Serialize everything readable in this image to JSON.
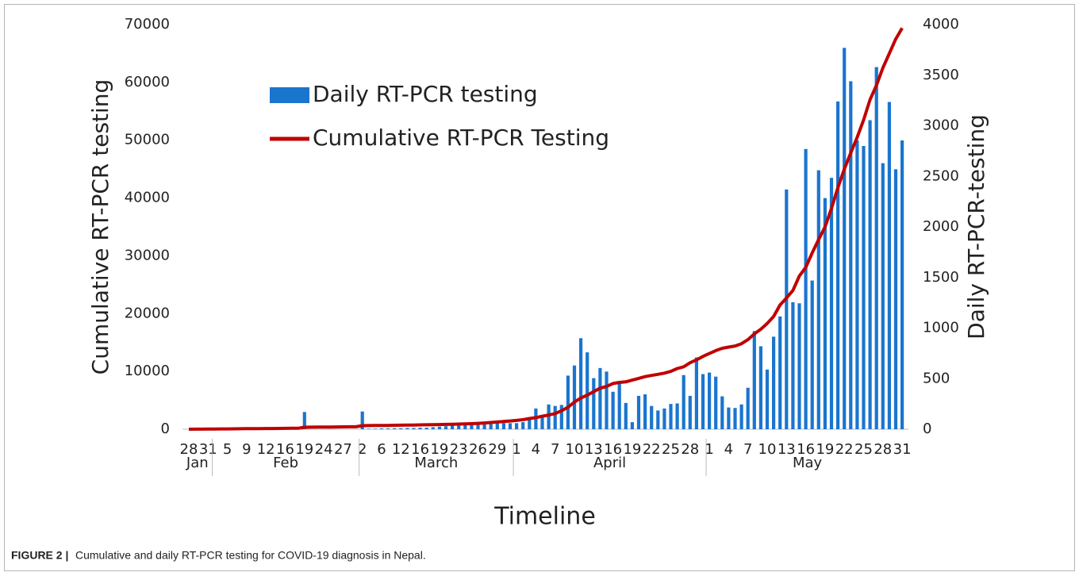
{
  "chart_data": {
    "type": "bar-line",
    "caption_label": "FIGURE 2 |",
    "caption": "Cumulative and daily RT-PCR testing for COVID-19 diagnosis in Nepal.",
    "x_label": "Timeline",
    "y_label": "Cumulative RT-PCR testing",
    "y2_label": "Daily RT-PCR-testing",
    "months": [
      "Jan",
      "Feb",
      "March",
      "April",
      "May"
    ],
    "categories": [
      "28",
      null,
      null,
      "31",
      null,
      null,
      "5",
      null,
      null,
      "9",
      null,
      null,
      "12",
      null,
      null,
      "16",
      null,
      null,
      "19",
      null,
      null,
      "24",
      null,
      null,
      "27",
      null,
      null,
      "2",
      null,
      null,
      "6",
      null,
      null,
      "12",
      null,
      null,
      "16",
      null,
      null,
      "19",
      null,
      null,
      "23",
      null,
      null,
      "26",
      null,
      null,
      "29",
      null,
      null,
      "1",
      null,
      null,
      "4",
      null,
      null,
      "7",
      null,
      null,
      "10",
      null,
      null,
      "13",
      null,
      null,
      "16",
      null,
      null,
      "19",
      null,
      null,
      "22",
      null,
      null,
      "25",
      null,
      null,
      "28",
      null,
      null,
      "1",
      null,
      null,
      "4",
      null,
      null,
      "7",
      null,
      null,
      "10",
      null,
      null,
      "13",
      null,
      null,
      "16",
      null,
      null,
      "19",
      null,
      null,
      "22",
      null,
      null,
      "25",
      null,
      null,
      "28",
      null,
      null,
      "31"
    ],
    "series": [
      {
        "name": "Daily RT-PCR testing",
        "color": "#1a75cf",
        "axis": "y2",
        "kind": "bar",
        "values": [
          0,
          0,
          0,
          0,
          0,
          0,
          0,
          0,
          0,
          0,
          0,
          0,
          0,
          0,
          0,
          0,
          0,
          0,
          170,
          0,
          0,
          0,
          0,
          0,
          0,
          0,
          0,
          175,
          5,
          5,
          8,
          8,
          10,
          10,
          12,
          12,
          15,
          15,
          20,
          25,
          30,
          35,
          40,
          45,
          50,
          55,
          60,
          60,
          60,
          60,
          60,
          60,
          70,
          115,
          205,
          120,
          245,
          230,
          240,
          530,
          630,
          900,
          760,
          505,
          605,
          570,
          370,
          475,
          260,
          70,
          330,
          345,
          230,
          185,
          205,
          250,
          255,
          535,
          330,
          710,
          545,
          560,
          520,
          325,
          215,
          210,
          245,
          410,
          970,
          820,
          590,
          915,
          1115,
          2370,
          1255,
          1245,
          2770,
          1470,
          2560,
          2285,
          2485,
          3240,
          3770,
          3440,
          2855,
          2800,
          3055,
          3580,
          2630,
          3235,
          2570,
          2855
        ]
      },
      {
        "name": "Cumulative RT-PCR Testing",
        "color": "#c00000",
        "kind": "line",
        "values": [
          0,
          10,
          20,
          30,
          40,
          50,
          60,
          70,
          80,
          90,
          100,
          110,
          120,
          130,
          140,
          150,
          160,
          170,
          350,
          360,
          370,
          380,
          390,
          400,
          410,
          420,
          430,
          620,
          630,
          640,
          650,
          665,
          680,
          695,
          710,
          730,
          750,
          770,
          790,
          810,
          835,
          860,
          890,
          920,
          960,
          1010,
          1080,
          1160,
          1250,
          1340,
          1430,
          1530,
          1650,
          1850,
          2000,
          2250,
          2450,
          2700,
          3200,
          3800,
          4700,
          5400,
          5900,
          6500,
          7100,
          7400,
          7900,
          8100,
          8200,
          8500,
          8800,
          9100,
          9300,
          9500,
          9700,
          10000,
          10500,
          10800,
          11500,
          12000,
          12600,
          13100,
          13600,
          14000,
          14200,
          14400,
          14800,
          15500,
          16500,
          17300,
          18300,
          19500,
          21500,
          22700,
          24000,
          26500,
          28000,
          30500,
          32800,
          35000,
          38200,
          41800,
          45000,
          47800,
          50500,
          53500,
          57000,
          59500,
          62500,
          65000,
          67500,
          69400
        ]
      }
    ],
    "ylim": [
      0,
      70000
    ],
    "yticks": [
      0,
      10000,
      20000,
      30000,
      40000,
      50000,
      60000,
      70000
    ],
    "y2lim": [
      0,
      4000
    ],
    "y2ticks": [
      0,
      500,
      1000,
      1500,
      2000,
      2500,
      3000,
      3500,
      4000
    ],
    "grid": false
  }
}
